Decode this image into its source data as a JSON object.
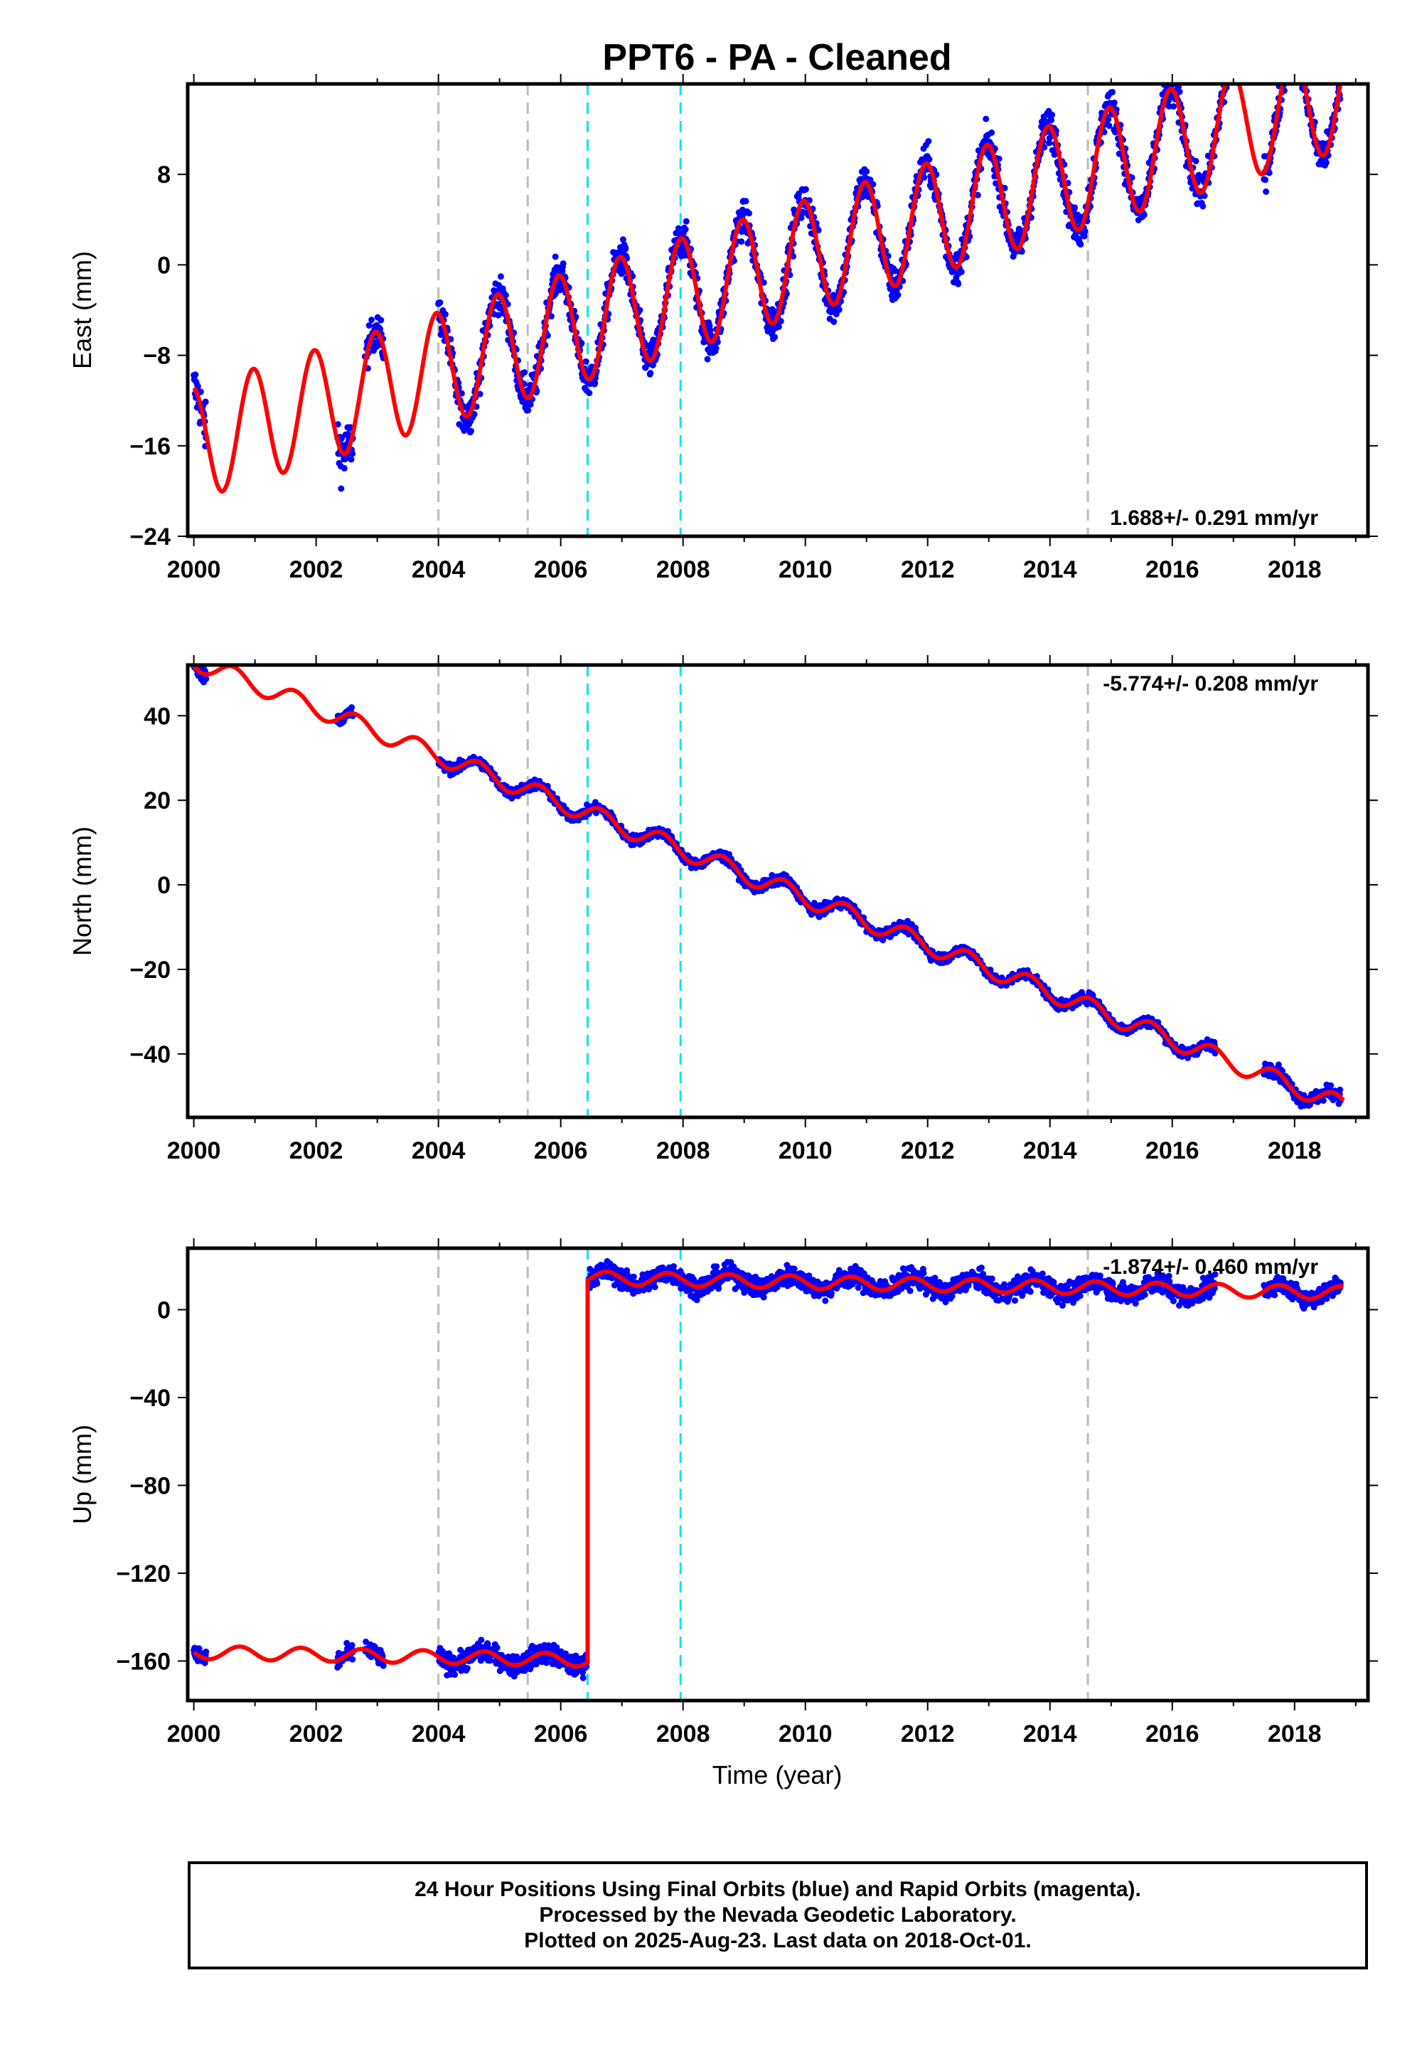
{
  "chart_data": {
    "title": "PPT6  - PA - Cleaned",
    "xlabel": "Time (year)",
    "x_ticks": [
      "2000",
      "2002",
      "2004",
      "2006",
      "2008",
      "2010",
      "2012",
      "2014",
      "2016",
      "2018"
    ],
    "x_range": [
      1999.9,
      2019.2
    ],
    "vertical_lines": [
      {
        "x": 2004.0,
        "color": "#bbbbbb"
      },
      {
        "x": 2005.46,
        "color": "#bbbbbb"
      },
      {
        "x": 2006.44,
        "color": "#00e5ee"
      },
      {
        "x": 2007.96,
        "color": "#00e5ee"
      },
      {
        "x": 2014.62,
        "color": "#bbbbbb"
      }
    ],
    "point_color": "#0000ff",
    "model_color": "#ff0000",
    "panels": [
      {
        "type": "scatter",
        "ylabel": "East (mm)",
        "ylim": [
          -24,
          16
        ],
        "y_ticks": [
          "8",
          "0",
          "-8",
          "-16",
          "-24"
        ],
        "rate_label": "1.688+/- 0.291 mm/yr",
        "rate_position": "bottom-right",
        "model": {
          "rate": 1.65,
          "amplitude": 5.0,
          "phase_year": 2000.72,
          "offset_at_2000": -15.8
        },
        "data_segments": [
          {
            "start": 2000.0,
            "end": 2000.2,
            "noise": 2.2
          },
          {
            "start": 2002.35,
            "end": 2002.6,
            "noise": 2.5
          },
          {
            "start": 2002.8,
            "end": 2003.1,
            "noise": 1.5
          },
          {
            "start": 2004.0,
            "end": 2017.0,
            "noise": 1.6
          },
          {
            "start": 2017.5,
            "end": 2018.75,
            "noise": 1.5
          }
        ]
      },
      {
        "type": "scatter",
        "ylabel": "North (mm)",
        "ylim": [
          -55,
          52
        ],
        "y_ticks": [
          "40",
          "20",
          "0",
          "-20",
          "-40"
        ],
        "rate_label": "-5.774+/- 0.208 mm/yr",
        "rate_position": "top-right",
        "model": {
          "rate": -5.6,
          "amplitude": 2.2,
          "phase_year": 2000.4,
          "offset_at_2000": 53
        },
        "data_segments": [
          {
            "start": 2000.0,
            "end": 2000.2,
            "noise": 2.0
          },
          {
            "start": 2002.35,
            "end": 2002.6,
            "noise": 1.5
          },
          {
            "start": 2004.0,
            "end": 2016.7,
            "noise": 1.2
          },
          {
            "start": 2017.5,
            "end": 2018.75,
            "noise": 1.6
          }
        ]
      },
      {
        "type": "scatter",
        "ylabel": "Up (mm)",
        "ylim": [
          -178,
          28
        ],
        "y_ticks": [
          "0",
          "-40",
          "-80",
          "-120",
          "-160"
        ],
        "rate_label": "-1.874+/- 0.460 mm/yr",
        "rate_position": "top-right",
        "model": {
          "rate": -0.55,
          "amplitude": 3.0,
          "phase_year": 2000.5,
          "offset_at_2000": -156,
          "step_year": 2006.44,
          "step_size": 174
        },
        "data_segments": [
          {
            "start": 2000.0,
            "end": 2000.2,
            "noise": 4.0
          },
          {
            "start": 2002.35,
            "end": 2002.6,
            "noise": 4.0
          },
          {
            "start": 2002.8,
            "end": 2003.1,
            "noise": 4.0
          },
          {
            "start": 2004.0,
            "end": 2006.42,
            "noise": 4.5
          },
          {
            "start": 2006.46,
            "end": 2016.7,
            "noise": 4.5
          },
          {
            "start": 2017.5,
            "end": 2018.75,
            "noise": 4.0
          }
        ]
      }
    ]
  },
  "footer": {
    "line1": "24 Hour Positions Using Final Orbits (blue) and Rapid Orbits (magenta).",
    "line2": "Processed by the Nevada Geodetic Laboratory.",
    "line3": "Plotted on 2025-Aug-23. Last data on 2018-Oct-01."
  }
}
